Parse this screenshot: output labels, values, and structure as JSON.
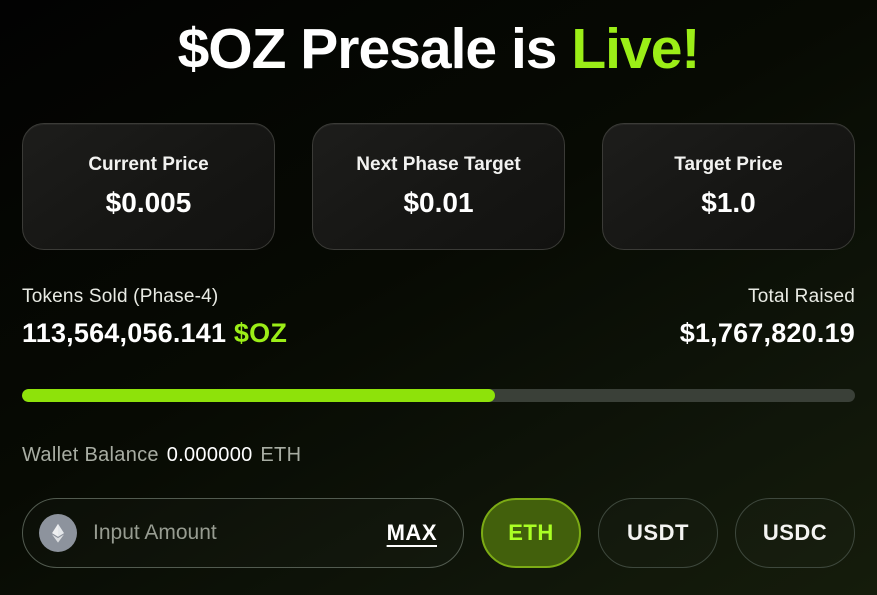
{
  "title": {
    "prefix": "$OZ Presale is ",
    "highlight": "Live!"
  },
  "stats_cards": [
    {
      "label": "Current Price",
      "value": "$0.005"
    },
    {
      "label": "Next Phase Target",
      "value": "$0.01"
    },
    {
      "label": "Target Price",
      "value": "$1.0"
    }
  ],
  "sold": {
    "label": "Tokens Sold (Phase-4)",
    "amount": "113,564,056.141 ",
    "ticker": "$OZ"
  },
  "raised": {
    "label": "Total Raised",
    "value": "$1,767,820.19"
  },
  "progress": {
    "percent": 56.8
  },
  "wallet": {
    "label": "Wallet Balance",
    "balance": "0.000000",
    "unit": "ETH"
  },
  "amount_input": {
    "placeholder": "Input Amount",
    "value": "",
    "max_label": "MAX",
    "icon": "ethereum-icon"
  },
  "currencies": [
    {
      "label": "ETH",
      "selected": true
    },
    {
      "label": "USDT",
      "selected": false
    },
    {
      "label": "USDC",
      "selected": false
    }
  ],
  "colors": {
    "accent_lime": "#9bee17",
    "progress_fill": "#8ee20a",
    "progress_track": "#3a4038",
    "eth_button_bg": "#42600c",
    "eth_button_border": "#7cab15",
    "eth_button_text": "#aaff24",
    "card_border": "#3b3b37",
    "muted_text": "#a8ada3"
  }
}
